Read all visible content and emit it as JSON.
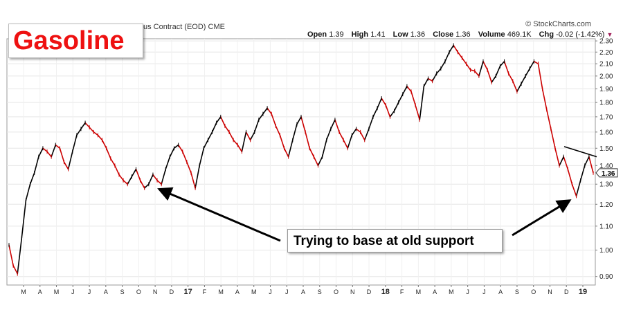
{
  "header": {
    "title": "Gasoline",
    "contract_label": "us Contract (EOD)",
    "exchange": "CME",
    "watermark": "© StockCharts.com"
  },
  "stats": {
    "open_label": "Open",
    "open": "1.39",
    "high_label": "High",
    "high": "1.41",
    "low_label": "Low",
    "low": "1.36",
    "close_label": "Close",
    "close": "1.36",
    "volume_label": "Volume",
    "volume": "469.1K",
    "chg_label": "Chg",
    "chg": "-0.02 (-1.42%)"
  },
  "annotation": {
    "text": "Trying to base at old support"
  },
  "colors": {
    "up": "#000000",
    "down": "#cc0000",
    "title": "#ee1111",
    "grid": "#e6e6e6"
  },
  "chart_data": {
    "type": "line",
    "title": "Gasoline",
    "ylim": [
      0.87,
      2.32
    ],
    "y_scale": "log",
    "y_ticks": [
      0.9,
      1.0,
      1.1,
      1.2,
      1.3,
      1.4,
      1.5,
      1.6,
      1.7,
      1.8,
      1.9,
      2.0,
      2.1,
      2.2,
      2.3
    ],
    "x_tick_labels": [
      "M",
      "A",
      "M",
      "J",
      "J",
      "A",
      "S",
      "O",
      "N",
      "D",
      "17",
      "F",
      "M",
      "A",
      "M",
      "J",
      "J",
      "A",
      "S",
      "O",
      "N",
      "D",
      "18",
      "F",
      "M",
      "A",
      "M",
      "J",
      "J",
      "A",
      "S",
      "O",
      "N",
      "D",
      "19"
    ],
    "last_price_label": "1.36",
    "grid": true,
    "series": [
      {
        "values": [
          1.02,
          0.94,
          0.91,
          1.05,
          1.22,
          1.3,
          1.36,
          1.45,
          1.5,
          1.48,
          1.45,
          1.52,
          1.5,
          1.42,
          1.38,
          1.48,
          1.58,
          1.62,
          1.66,
          1.63,
          1.6,
          1.58,
          1.55,
          1.5,
          1.44,
          1.4,
          1.35,
          1.32,
          1.3,
          1.34,
          1.38,
          1.32,
          1.28,
          1.3,
          1.35,
          1.32,
          1.3,
          1.38,
          1.45,
          1.5,
          1.52,
          1.48,
          1.42,
          1.36,
          1.28,
          1.4,
          1.5,
          1.55,
          1.6,
          1.66,
          1.7,
          1.64,
          1.6,
          1.55,
          1.52,
          1.48,
          1.6,
          1.55,
          1.6,
          1.68,
          1.72,
          1.76,
          1.72,
          1.64,
          1.58,
          1.5,
          1.45,
          1.55,
          1.65,
          1.7,
          1.6,
          1.5,
          1.45,
          1.4,
          1.45,
          1.55,
          1.62,
          1.68,
          1.6,
          1.55,
          1.5,
          1.58,
          1.62,
          1.6,
          1.55,
          1.62,
          1.7,
          1.76,
          1.83,
          1.78,
          1.7,
          1.74,
          1.8,
          1.86,
          1.92,
          1.88,
          1.78,
          1.68,
          1.92,
          1.98,
          1.96,
          2.02,
          2.06,
          2.12,
          2.2,
          2.26,
          2.2,
          2.15,
          2.1,
          2.05,
          2.04,
          2.0,
          2.12,
          2.05,
          1.95,
          2.0,
          2.08,
          2.12,
          2.02,
          1.96,
          1.88,
          1.94,
          2.0,
          2.06,
          2.12,
          2.1,
          1.9,
          1.75,
          1.62,
          1.5,
          1.4,
          1.45,
          1.38,
          1.3,
          1.24,
          1.32,
          1.4,
          1.45,
          1.36
        ]
      }
    ],
    "trendline_values": [
      1.51,
      1.45
    ],
    "support_values": [
      1.28,
      1.23
    ]
  }
}
